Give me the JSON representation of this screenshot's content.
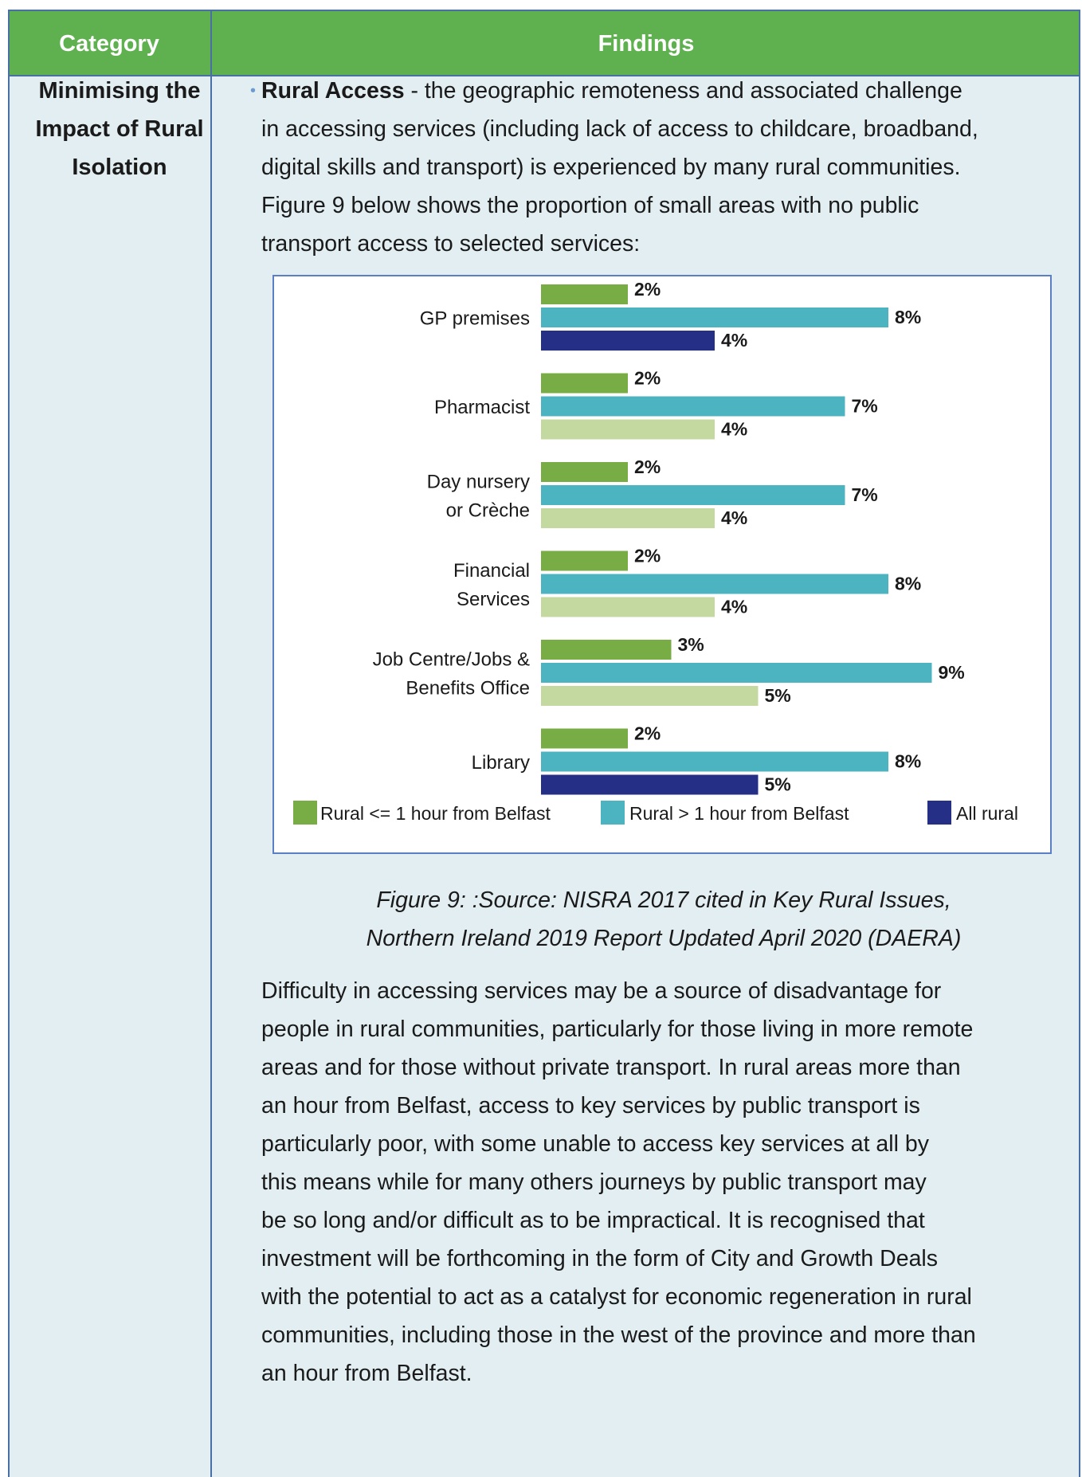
{
  "table": {
    "headers": {
      "category": "Category",
      "findings": "Findings"
    },
    "category_lines": [
      "Minimising the",
      "Impact of Rural",
      "Isolation"
    ],
    "intro": {
      "bold_title": "Rural Access",
      "lines": [
        " - the geographic remoteness and associated challenge",
        "in accessing services (including lack of access to childcare, broadband,",
        "digital skills and transport) is experienced by many rural communities.",
        "Figure 9 below shows the proportion of small areas with no public",
        "transport access to selected services:"
      ]
    },
    "caption_lines": [
      "Figure 9: :Source: NISRA 2017 cited in Key Rural Issues,",
      "Northern Ireland 2019 Report Updated April 2020 (DAERA)"
    ],
    "body_lines": [
      "Difficulty in accessing services may be a source of disadvantage for",
      "people in rural communities, particularly for those living in more remote",
      "areas and for those without private transport. In rural areas more than",
      "an hour from Belfast, access to key services by public transport is",
      "particularly poor, with some unable to access key services at all by",
      "this means while for many others journeys by public transport may",
      "be so long and/or difficult as to be impractical. It is recognised that",
      "investment will be forthcoming in the form of City and Growth Deals",
      "with the potential to act as a catalyst for economic regeneration in rural",
      "communities, including those in the west of the province and more than",
      "an hour from Belfast."
    ]
  },
  "chart_data": {
    "type": "bar",
    "orientation": "horizontal",
    "unit": "%",
    "categories": [
      [
        "GP premises"
      ],
      [
        "Pharmacist"
      ],
      [
        "Day nursery",
        "or Crèche"
      ],
      [
        "Financial",
        "Services"
      ],
      [
        "Job Centre/Jobs &",
        "Benefits Office"
      ],
      [
        "Library"
      ]
    ],
    "series": [
      {
        "name": "Rural <= 1 hour from Belfast",
        "color": "#78ad45",
        "values": [
          2,
          2,
          2,
          2,
          3,
          2
        ]
      },
      {
        "name": "Rural > 1 hour from Belfast",
        "color": "#4cb3c1",
        "values": [
          8,
          7,
          7,
          8,
          9,
          8
        ]
      },
      {
        "name": "All rural",
        "color": "#262f86",
        "values": [
          4,
          4,
          4,
          4,
          5,
          5
        ]
      }
    ],
    "all_rural_bar_colors": [
      "#262f86",
      "#c3d9a0",
      "#c3d9a0",
      "#c3d9a0",
      "#c3d9a0",
      "#262f86"
    ],
    "data_labels": [
      [
        "2%",
        "8%",
        "4%"
      ],
      [
        "2%",
        "7%",
        "4%"
      ],
      [
        "2%",
        "7%",
        "4%"
      ],
      [
        "2%",
        "8%",
        "4%"
      ],
      [
        "3%",
        "9%",
        "5%"
      ],
      [
        "2%",
        "8%",
        "5%"
      ]
    ],
    "legend_position": "bottom",
    "grid": false
  }
}
